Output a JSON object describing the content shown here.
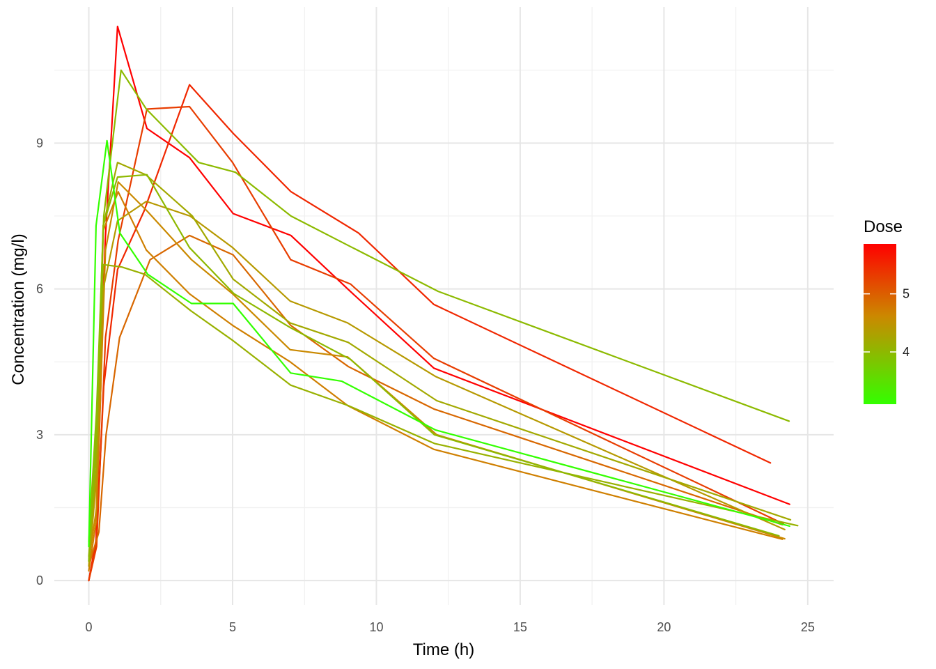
{
  "chart_data": {
    "type": "line",
    "title": "",
    "xlabel": "Time (h)",
    "ylabel": "Concentration (mg/l)",
    "xlim": [
      -1.2,
      25.9
    ],
    "ylim": [
      -0.5,
      11.8
    ],
    "x_ticks": [
      0,
      5,
      10,
      15,
      20,
      25
    ],
    "x_tick_labels": [
      "0",
      "5",
      "10",
      "15",
      "20",
      "25"
    ],
    "y_ticks": [
      0,
      3,
      6,
      9
    ],
    "y_tick_labels": [
      "0",
      "3",
      "6",
      "9"
    ],
    "grid": true,
    "legend": {
      "title": "Dose",
      "position": "right",
      "min": 3.1,
      "max": 5.86,
      "ticks": [
        4,
        5
      ],
      "tick_labels": [
        "4",
        "5"
      ],
      "low_color": "#33ff00",
      "mid_color": "#cc8800",
      "high_color": "#ff0000"
    },
    "series": [
      {
        "dose": 5.86,
        "x": [
          0,
          0.25,
          0.57,
          1.0,
          2.02,
          3.5,
          5.02,
          7.03,
          9.0,
          12.0,
          24.37
        ],
        "y": [
          0,
          0.8,
          7.0,
          11.4,
          9.3,
          8.7,
          7.55,
          7.1,
          6.0,
          4.37,
          1.57
        ]
      },
      {
        "dose": 5.5,
        "x": [
          0,
          0.27,
          0.52,
          1.0,
          1.92,
          3.5,
          5.02,
          7.03,
          9.38,
          12.0,
          23.7
        ],
        "y": [
          0,
          0.9,
          4.0,
          6.4,
          7.6,
          10.2,
          9.2,
          8.0,
          7.15,
          5.68,
          2.42
        ]
      },
      {
        "dose": 5.3,
        "x": [
          0,
          0.27,
          0.58,
          1.02,
          2.02,
          3.5,
          5.0,
          7.02,
          9.1,
          12.0,
          24.15
        ],
        "y": [
          0,
          0.7,
          5.0,
          7.0,
          9.7,
          9.75,
          8.6,
          6.6,
          6.1,
          4.57,
          1.17
        ]
      },
      {
        "dose": 4.92,
        "x": [
          0,
          0.35,
          0.6,
          1.07,
          2.13,
          3.5,
          5.02,
          7.02,
          9.03,
          12.0,
          24.12
        ],
        "y": [
          0.3,
          1.0,
          3.0,
          5.0,
          6.6,
          7.1,
          6.7,
          5.25,
          4.4,
          3.53,
          1.15
        ]
      },
      {
        "dose": 4.7,
        "x": [
          0,
          0.25,
          0.5,
          1.02,
          2.0,
          3.5,
          5.0,
          7.0,
          9.0,
          12.0,
          24.12
        ],
        "y": [
          0.2,
          1.2,
          7.2,
          8.0,
          6.8,
          5.9,
          5.25,
          4.5,
          3.6,
          2.7,
          0.85
        ]
      },
      {
        "dose": 4.6,
        "x": [
          0,
          0.27,
          0.58,
          1.02,
          2.03,
          3.57,
          5.0,
          7.0,
          9.0,
          12.1,
          24.2
        ],
        "y": [
          0.4,
          1.5,
          6.8,
          8.2,
          7.6,
          6.6,
          5.9,
          4.75,
          4.6,
          3.0,
          0.86
        ]
      },
      {
        "dose": 4.4,
        "x": [
          0,
          0.25,
          0.5,
          1.0,
          2.0,
          3.52,
          5.0,
          7.0,
          9.0,
          12.05,
          24.2
        ],
        "y": [
          0.3,
          2.0,
          6.0,
          7.4,
          7.8,
          7.5,
          6.85,
          5.75,
          5.3,
          4.2,
          1.05
        ]
      },
      {
        "dose": 4.2,
        "x": [
          0,
          0.25,
          0.5,
          1.0,
          1.98,
          3.6,
          5.02,
          7.0,
          9.02,
          12.1,
          24.4
        ],
        "y": [
          0.5,
          2.3,
          7.3,
          8.6,
          8.35,
          7.5,
          6.2,
          5.3,
          4.9,
          3.7,
          1.25
        ]
      },
      {
        "dose": 4.1,
        "x": [
          0,
          0.25,
          0.5,
          1.15,
          1.95,
          3.55,
          4.98,
          7.02,
          9.02,
          12.02,
          24.65
        ],
        "y": [
          0.4,
          3.0,
          6.5,
          6.45,
          6.3,
          5.55,
          4.95,
          4.02,
          3.6,
          2.82,
          1.13
        ]
      },
      {
        "dose": 4.0,
        "x": [
          0,
          0.25,
          0.5,
          1.0,
          2.02,
          3.5,
          5.05,
          7.02,
          9.1,
          12.02,
          24.0
        ],
        "y": [
          0.4,
          2.8,
          7.3,
          8.3,
          8.35,
          6.85,
          5.9,
          5.2,
          4.55,
          3.0,
          0.92
        ]
      },
      {
        "dose": 3.98,
        "x": [
          0,
          0.27,
          0.52,
          1.12,
          2.0,
          3.82,
          5.1,
          7.03,
          9.0,
          12.15,
          24.35
        ],
        "y": [
          0.8,
          3.5,
          7.5,
          10.5,
          9.7,
          8.6,
          8.4,
          7.5,
          6.9,
          5.95,
          3.28
        ]
      },
      {
        "dose": 3.1,
        "x": [
          0,
          0.25,
          0.63,
          1.08,
          2.05,
          3.57,
          5.02,
          7.02,
          8.8,
          12.05,
          24.37
        ],
        "y": [
          0.7,
          7.3,
          9.05,
          7.15,
          6.3,
          5.7,
          5.7,
          4.27,
          4.1,
          3.1,
          1.12
        ]
      }
    ]
  }
}
